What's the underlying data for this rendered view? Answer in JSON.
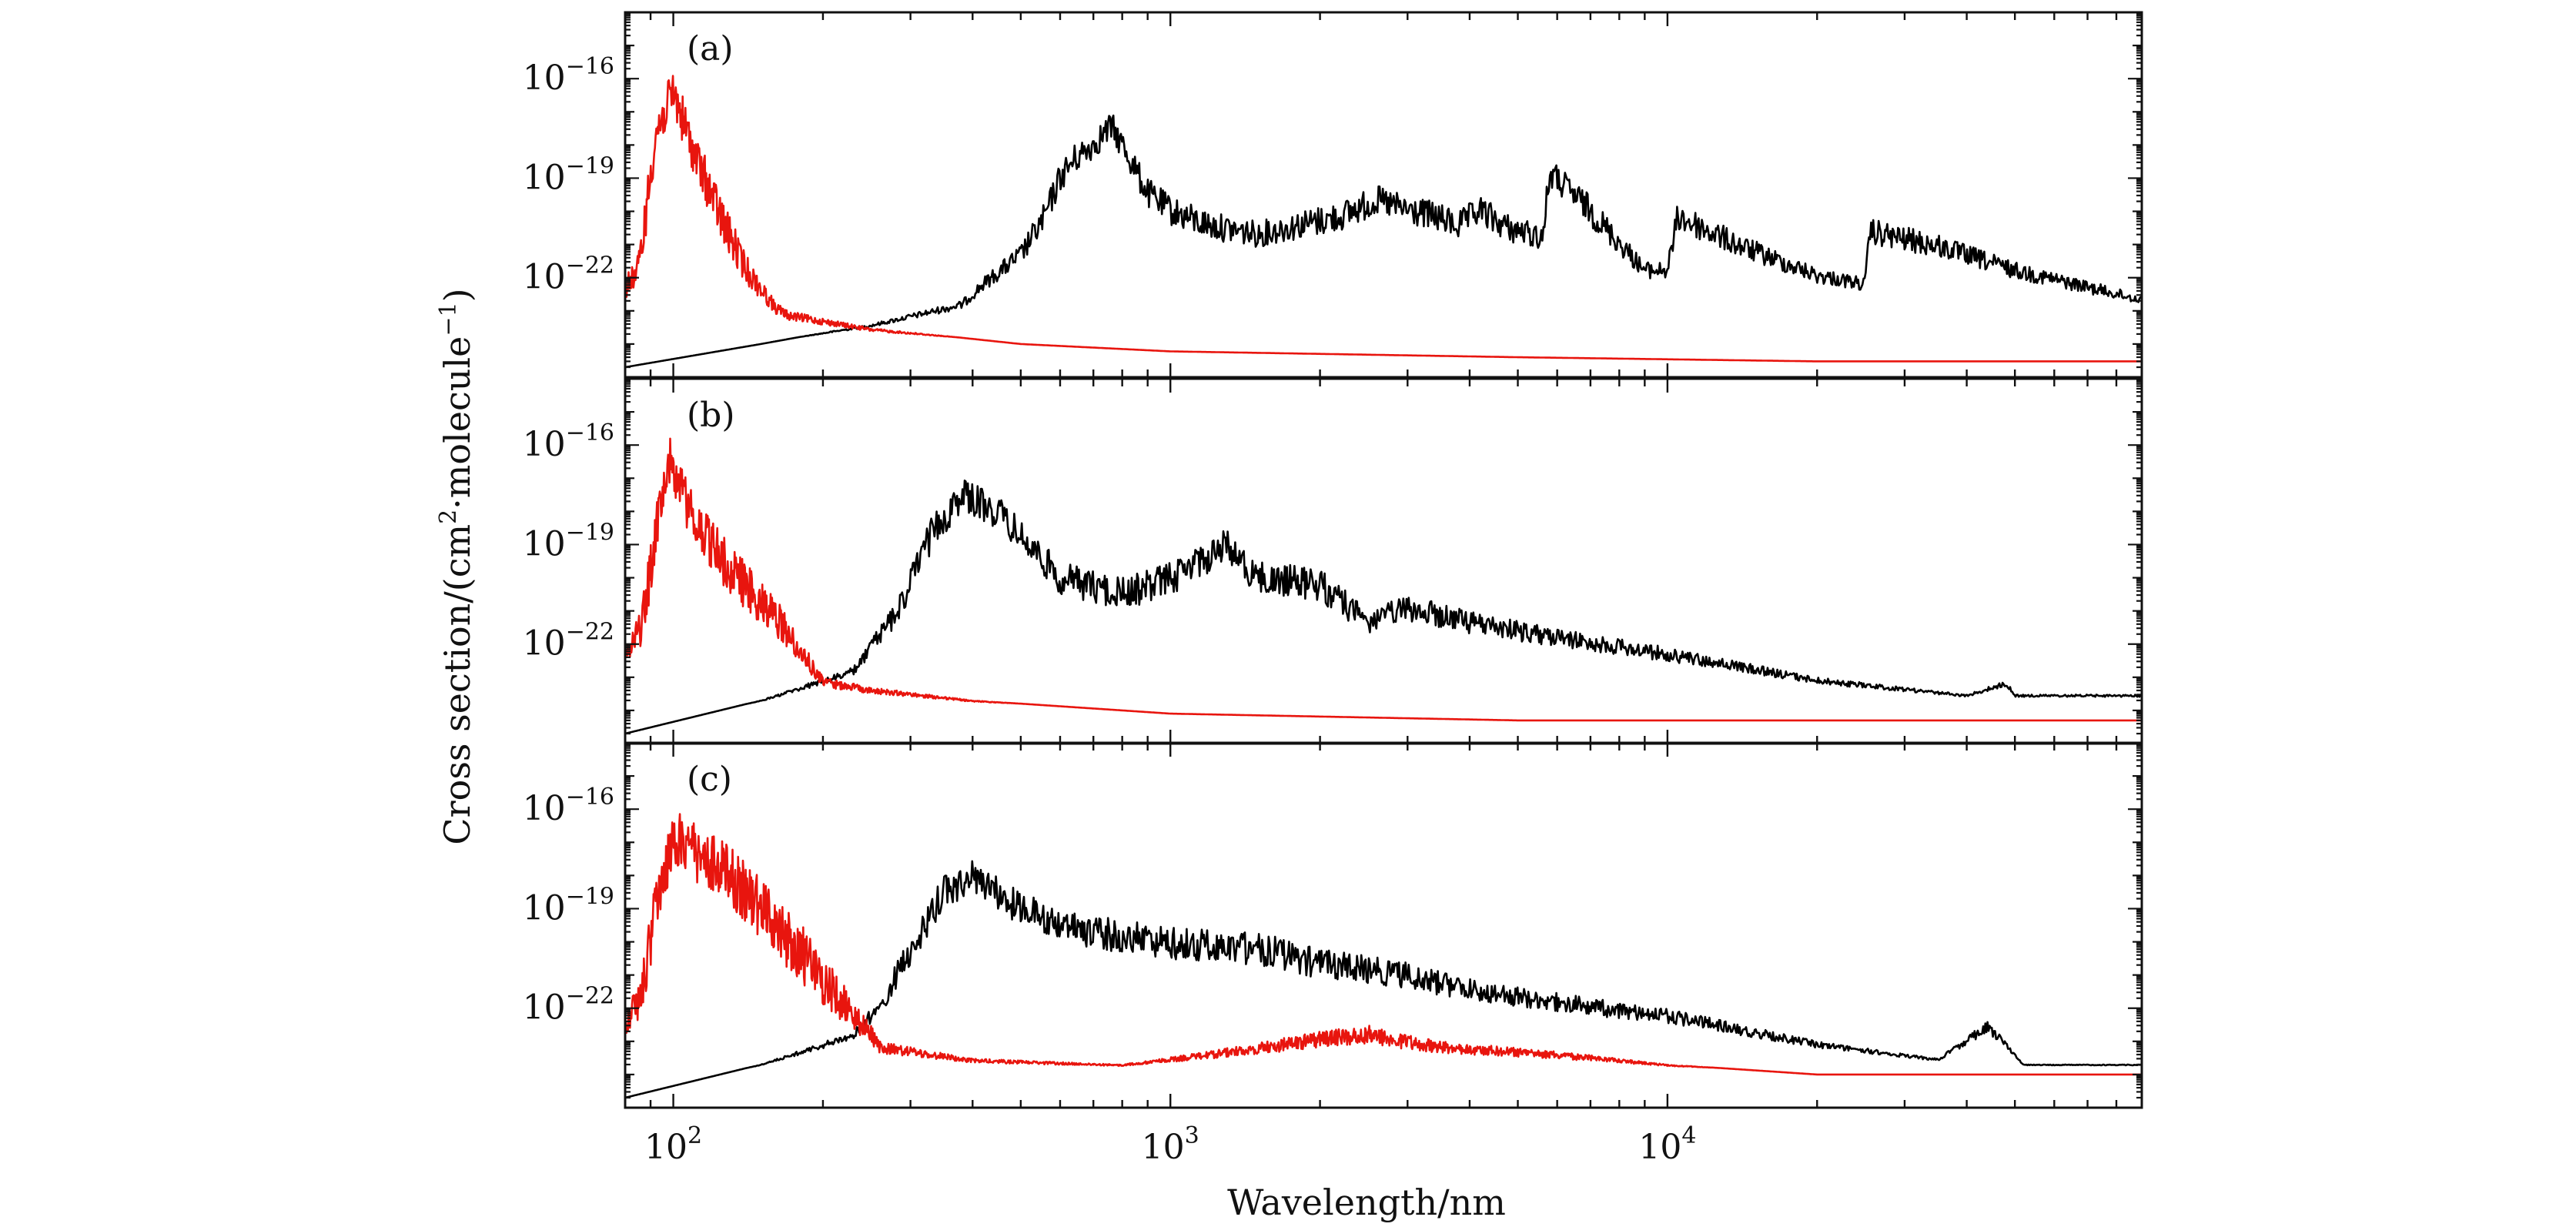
{
  "chart_data": {
    "type": "line",
    "x_scale": "log",
    "y_scale": "log",
    "xlabel": "Wavelength/nm",
    "ylabel": {
      "base": "Cross section/(cm",
      "sup1": "2",
      "mid": "·molecule",
      "sup2": "−1",
      "end": ")"
    },
    "xlim": [
      80,
      90000
    ],
    "ylim": [
      1e-25,
      1e-14
    ],
    "x_ticks": [
      {
        "value": 100,
        "base": "10",
        "exp": "2"
      },
      {
        "value": 1000,
        "base": "10",
        "exp": "3"
      },
      {
        "value": 10000,
        "base": "10",
        "exp": "4"
      }
    ],
    "y_ticks": [
      {
        "value": 1e-16,
        "base": "10",
        "exp": "−16"
      },
      {
        "value": 1e-19,
        "base": "10",
        "exp": "−19"
      },
      {
        "value": 1e-22,
        "base": "10",
        "exp": "−22"
      }
    ],
    "colors": {
      "series_black": "#000000",
      "series_red": "#e8150e",
      "frame": "#111111"
    },
    "panels": [
      {
        "label": "(a)",
        "series": [
          {
            "name": "black",
            "color": "#000000",
            "noise_decades": 0.9,
            "x": [
              80,
              150,
              250,
              380,
              420,
              500,
              560,
              600,
              640,
              700,
              760,
              800,
              900,
              1000,
              1200,
              1500,
              1800,
              2200,
              2600,
              3000,
              3400,
              3800,
              4200,
              4800,
              5600,
              5800,
              7000,
              9000,
              10000,
              10500,
              14000,
              20000,
              25000,
              25500,
              35000,
              50000,
              90000
            ],
            "y": [
              2e-25,
              1e-24,
              4e-24,
              2e-23,
              1e-22,
              1e-21,
              2e-20,
              3e-19,
              1e-18,
              3e-18,
              1e-17,
              3e-18,
              1e-19,
              3e-20,
              1e-20,
              5e-21,
              1e-20,
              2e-20,
              6e-20,
              3e-20,
              2e-20,
              1e-20,
              3e-20,
              8e-21,
              4e-21,
              4e-19,
              3e-20,
              3e-22,
              3e-22,
              2e-20,
              2e-21,
              2e-22,
              1e-22,
              6e-21,
              2e-21,
              3e-22,
              3e-23
            ]
          },
          {
            "name": "red",
            "color": "#e8150e",
            "noise_decades": 1.4,
            "x": [
              80,
              85,
              88,
              92,
              100,
              110,
              125,
              140,
              160,
              170,
              250,
              500,
              1000,
              5000,
              20000,
              90000
            ],
            "y": [
              1e-22,
              5e-22,
              4e-20,
              1e-17,
              2e-16,
              3e-18,
              3e-20,
              5e-22,
              2e-23,
              1e-23,
              3e-24,
              1e-24,
              6e-25,
              4e-25,
              3e-25,
              3e-25
            ]
          }
        ]
      },
      {
        "label": "(b)",
        "series": [
          {
            "name": "black",
            "color": "#000000",
            "noise_decades": 1.0,
            "x": [
              80,
              150,
              230,
              280,
              330,
              380,
              450,
              600,
              800,
              1000,
              1300,
              1500,
              2000,
              2500,
              3000,
              4000,
              6000,
              10000,
              20000,
              40000,
              48000,
              50000,
              90000
            ],
            "y": [
              2e-25,
              2e-24,
              2e-23,
              2e-21,
              6e-19,
              1e-17,
              3e-18,
              3e-20,
              1e-20,
              3e-20,
              3e-19,
              3e-20,
              2e-20,
              1e-21,
              3e-21,
              1e-21,
              3e-22,
              8e-23,
              1e-23,
              3e-24,
              8e-24,
              3e-24,
              3e-24
            ]
          },
          {
            "name": "red",
            "color": "#e8150e",
            "noise_decades": 1.5,
            "x": [
              80,
              86,
              92,
              98,
              110,
              130,
              160,
              200,
              250,
              400,
              1000,
              5000,
              90000
            ],
            "y": [
              1e-22,
              1e-21,
              1e-18,
              2e-16,
              3e-18,
              1e-19,
              3e-21,
              1e-23,
              5e-24,
              2e-24,
              8e-25,
              5e-25,
              5e-25
            ]
          }
        ]
      },
      {
        "label": "(c)",
        "series": [
          {
            "name": "black",
            "color": "#000000",
            "noise_decades": 1.0,
            "x": [
              80,
              150,
              230,
              260,
              300,
              350,
              400,
              500,
              700,
              1000,
              1500,
              2000,
              2800,
              4000,
              7000,
              10000,
              20000,
              35000,
              44000,
              48000,
              52000,
              90000
            ],
            "y": [
              2e-25,
              2e-24,
              2e-23,
              2e-22,
              2e-20,
              1e-18,
              3e-18,
              3e-19,
              6e-20,
              3e-20,
              2e-20,
              6e-21,
              3e-21,
              8e-22,
              2e-22,
              1e-22,
              1e-23,
              3e-24,
              4e-23,
              1e-23,
              2e-24,
              2e-24
            ]
          },
          {
            "name": "red",
            "color": "#e8150e",
            "noise_decades": 1.8,
            "x": [
              80,
              86,
              92,
              100,
              130,
              180,
              230,
              250,
              260,
              400,
              800,
              1200,
              2000,
              2500,
              3500,
              6000,
              10000,
              20000,
              90000
            ],
            "y": [
              1e-22,
              1e-21,
              1e-18,
              1e-16,
              8e-18,
              4e-20,
              2e-22,
              3e-23,
              1e-23,
              3e-24,
              2e-24,
              5e-24,
              2e-23,
              3e-23,
              1e-23,
              5e-24,
              2e-24,
              1e-24,
              1e-24
            ]
          }
        ]
      }
    ]
  }
}
